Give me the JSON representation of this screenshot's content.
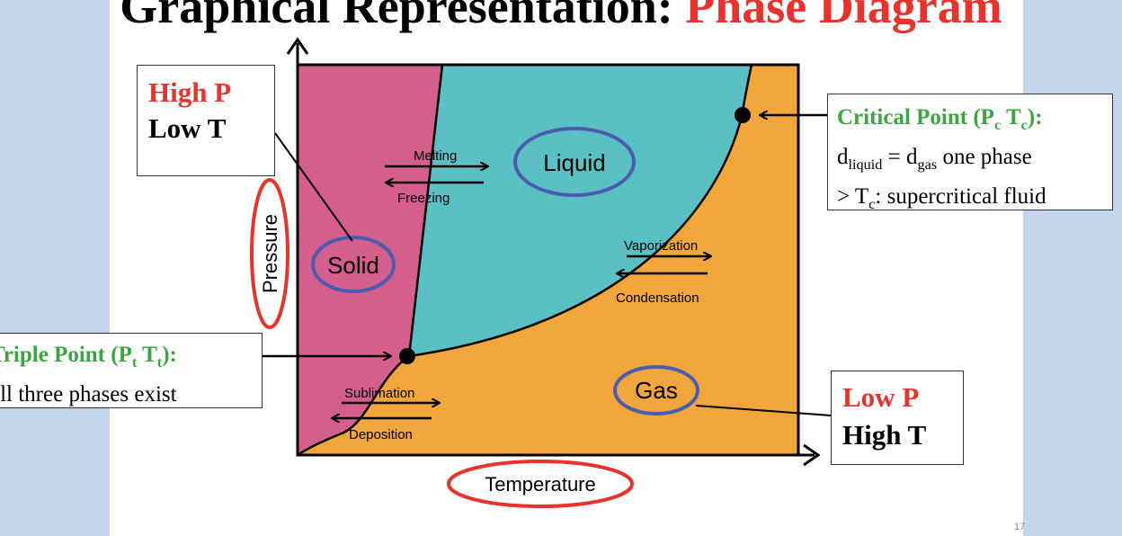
{
  "title": {
    "main": "Graphical Representation: ",
    "accent": "Phase Diagram"
  },
  "axes": {
    "x_label": "Temperature",
    "y_label": "Pressure"
  },
  "regions": {
    "solid": "Solid",
    "liquid": "Liquid",
    "gas": "Gas"
  },
  "transitions": {
    "melting": "Melting",
    "freezing": "Freezing",
    "vaporization": "Vaporization",
    "condensation": "Condensation",
    "sublimation": "Sublimation",
    "deposition": "Deposition"
  },
  "boxes": {
    "high_p": {
      "line1": "High P",
      "line2": "Low T"
    },
    "low_p": {
      "line1": "Low P",
      "line2": "High T"
    },
    "critical": {
      "title": "Critical Point (P",
      "title_sub1": "c",
      "title_mid": " T",
      "title_sub2": "c",
      "title_end": "):",
      "line1_a": "d",
      "line1_sub_a": "liquid",
      "line1_b": " = d",
      "line1_sub_b": "gas",
      "line1_c": " one phase",
      "line2_a": "> T",
      "line2_sub": "c",
      "line2_b": ": supercritical fluid"
    },
    "triple": {
      "title": "Triple Point (P",
      "title_sub1": "t",
      "title_mid": " T",
      "title_sub2": "t",
      "title_end": "):",
      "line1": "all three phases exist"
    }
  },
  "colors": {
    "solid": "#d45e8c",
    "liquid": "#5bc0c3",
    "gas": "#f0a63b",
    "title_accent": "#e8322b",
    "box_green": "#3aa640",
    "oval_blue": "#4a5cb0",
    "oval_red": "#e8322b",
    "slide_bg": "#c3d5ea"
  },
  "slide_number": "17"
}
